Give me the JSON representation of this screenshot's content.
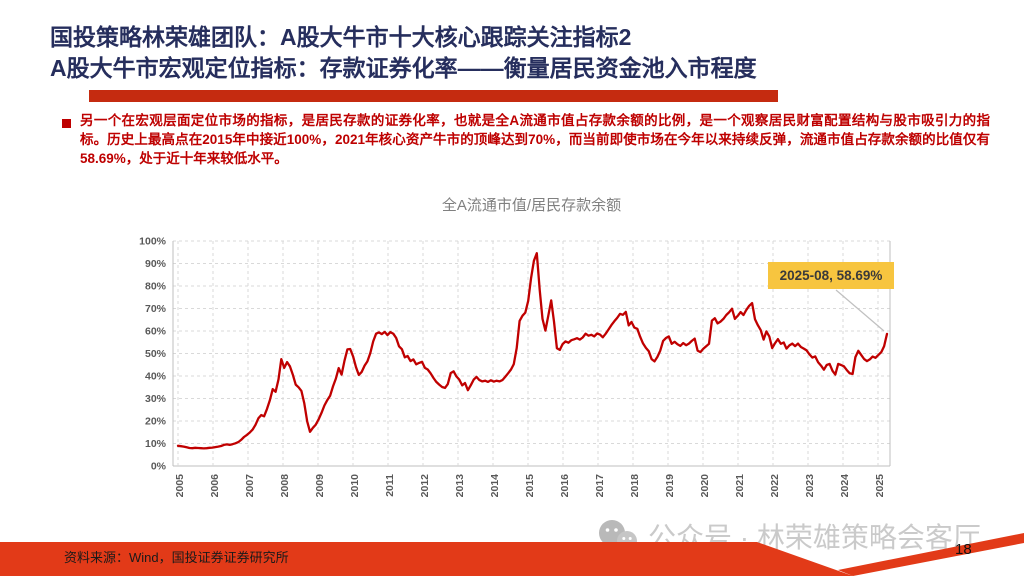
{
  "slide": {
    "title_line1": "国投策略林荣雄团队：A股大牛市十大核心跟踪关注指标2",
    "title_line2": "A股大牛市宏观定位指标：存款证券化率——衡量居民资金池入市程度",
    "body_text": "另一个在宏观层面定位市场的指标，是居民存款的证券化率，也就是全A流通市值占存款余额的比例，是一个观察居民财富配置结构与股市吸引力的指标。历史上最高点在2015年中接近100%，2021年核心资产牛市的顶峰达到70%，而当前即使市场在今年以来持续反弹，流通市值占存款余额的比值仅有58.69%，处于近十年来较低水平。",
    "footer_source": "资料来源：Wind，国投证券证券研究所",
    "watermark_text": "公众号 · 林荣雄策略会客厅",
    "page_number": "18"
  },
  "colors": {
    "title_navy": "#262e5d",
    "accent_red": "#c52b10",
    "body_red": "#be0000",
    "line_red": "#c00000",
    "grid_gray": "#d9d9d9",
    "axis_gray": "#bfbfbf",
    "tick_label_gray": "#595959",
    "callout_gold": "#f7c53f",
    "leader_gray": "#c0c0c0",
    "footer_red": "#e23a18",
    "watermark_gray": "#cacaca"
  },
  "chart_data": {
    "type": "line",
    "title": "全A流通市值/居民存款余额",
    "xlabel": "",
    "ylabel": "",
    "ylim": [
      0,
      100
    ],
    "grid": true,
    "legend": "none",
    "x_tick_labels": [
      "2005",
      "2006",
      "2007",
      "2008",
      "2009",
      "2010",
      "2011",
      "2012",
      "2013",
      "2014",
      "2015",
      "2016",
      "2017",
      "2018",
      "2019",
      "2020",
      "2021",
      "2022",
      "2023",
      "2024",
      "2025"
    ],
    "y_tick_labels": [
      "0%",
      "10%",
      "20%",
      "30%",
      "40%",
      "50%",
      "60%",
      "70%",
      "80%",
      "90%",
      "100%"
    ],
    "annotation": {
      "label": "2025-08, 58.69%",
      "date": "2025-08",
      "value": 58.69
    },
    "series": [
      {
        "name": "全A流通市值/居民存款余额",
        "frequency": "monthly",
        "start": "2005-01",
        "end": "2025-08",
        "unit": "%",
        "values": [
          9.0,
          8.8,
          8.6,
          8.3,
          8.0,
          7.9,
          8.1,
          8.0,
          7.9,
          7.8,
          7.9,
          8.1,
          8.2,
          8.4,
          8.6,
          8.9,
          9.4,
          9.6,
          9.4,
          9.7,
          10.1,
          10.6,
          11.6,
          12.9,
          13.8,
          14.9,
          16.2,
          18.3,
          21.2,
          22.6,
          22.1,
          25.4,
          29.3,
          34.2,
          33.0,
          38.5,
          47.5,
          43.6,
          46.2,
          44.3,
          40.6,
          36.2,
          35.0,
          33.4,
          27.8,
          19.8,
          15.2,
          17.0,
          18.4,
          20.8,
          23.6,
          26.9,
          29.3,
          31.2,
          35.4,
          38.9,
          43.5,
          40.6,
          46.8,
          51.8,
          52.0,
          48.7,
          43.9,
          40.5,
          41.8,
          44.6,
          46.5,
          50.2,
          55.4,
          58.8,
          59.4,
          58.6,
          59.6,
          58.2,
          59.5,
          58.8,
          56.9,
          53.2,
          51.9,
          48.3,
          48.9,
          46.6,
          47.4,
          45.2,
          45.8,
          46.3,
          43.6,
          42.9,
          41.2,
          39.1,
          37.4,
          36.2,
          35.1,
          34.7,
          36.4,
          41.3,
          42.1,
          39.8,
          38.4,
          35.8,
          36.9,
          33.7,
          35.9,
          38.4,
          39.6,
          38.2,
          37.6,
          37.9,
          37.4,
          38.1,
          37.5,
          37.9,
          37.6,
          38.2,
          39.6,
          41.2,
          42.9,
          45.3,
          52.4,
          64.5,
          66.8,
          68.2,
          73.4,
          83.6,
          91.2,
          94.6,
          78.3,
          65.4,
          60.2,
          66.8,
          73.6,
          64.2,
          52.3,
          51.6,
          54.2,
          55.4,
          54.8,
          55.9,
          56.3,
          56.8,
          56.2,
          57.1,
          58.8,
          57.9,
          58.3,
          57.6,
          58.9,
          58.4,
          57.2,
          58.8,
          60.7,
          62.6,
          64.3,
          65.8,
          67.6,
          67.2,
          68.5,
          62.5,
          64.0,
          61.5,
          61.0,
          57.5,
          54.5,
          52.5,
          51.0,
          47.5,
          46.5,
          48.5,
          51.2,
          55.6,
          56.9,
          57.6,
          54.3,
          55.2,
          54.1,
          53.4,
          54.6,
          53.7,
          54.4,
          55.6,
          56.6,
          51.3,
          50.6,
          52.1,
          53.2,
          54.3,
          64.6,
          65.7,
          63.4,
          64.2,
          65.4,
          67.1,
          68.3,
          69.9,
          65.4,
          66.7,
          68.4,
          67.1,
          69.4,
          71.2,
          72.4,
          65.2,
          62.6,
          60.4,
          56.2,
          59.8,
          57.6,
          52.4,
          54.6,
          56.4,
          54.3,
          54.9,
          52.2,
          53.6,
          54.4,
          53.3,
          54.4,
          52.9,
          52.2,
          51.4,
          49.6,
          48.2,
          48.7,
          46.1,
          44.6,
          42.8,
          44.9,
          45.4,
          42.3,
          40.6,
          45.4,
          44.9,
          44.3,
          42.6,
          41.2,
          40.9,
          48.4,
          51.2,
          49.4,
          47.6,
          46.6,
          47.4,
          48.6,
          48.1,
          49.4,
          50.6,
          53.2,
          58.69
        ]
      }
    ]
  }
}
